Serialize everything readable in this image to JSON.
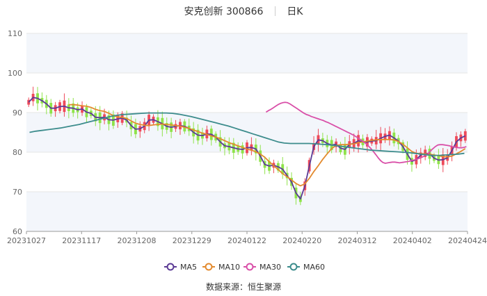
{
  "title": {
    "name": "安克创新",
    "code": "300866",
    "period": "日K"
  },
  "source": "数据来源：恒生聚源",
  "colors": {
    "up": "#ee4a5a",
    "down": "#8fe34a",
    "MA5": "#5b3a95",
    "MA10": "#e38a2e",
    "MA30": "#d94fa8",
    "MA60": "#3c8c8c",
    "grid": "#e6e6e6",
    "band": "#f3f6fb"
  },
  "chart_data": {
    "type": "candlestick",
    "ylim": [
      60,
      110
    ],
    "yticks": [
      60,
      70,
      80,
      90,
      100,
      110
    ],
    "xticks": [
      "20231027",
      "20231117",
      "20231208",
      "20231229",
      "20240122",
      "20240220",
      "20240312",
      "20240402",
      "20240424"
    ],
    "legend_position": "bottom",
    "series": [
      {
        "name": "MA5",
        "values": [
          92.6,
          93.8,
          93.6,
          93.0,
          92.2,
          91.1,
          91.1,
          91.5,
          91.6,
          91.2,
          91.1,
          90.7,
          90.9,
          90.1,
          89.8,
          88.8,
          88.7,
          88.8,
          88.2,
          88.1,
          88.4,
          88.6,
          88.1,
          86.7,
          85.8,
          85.9,
          86.6,
          88.1,
          88.2,
          87.7,
          87.2,
          86.5,
          86.3,
          86.5,
          86.7,
          86.5,
          86.0,
          85.0,
          84.3,
          84.2,
          84.6,
          84.5,
          83.8,
          82.6,
          81.6,
          81.4,
          81.1,
          80.8,
          80.7,
          81.1,
          81.2,
          80.8,
          79.0,
          76.9,
          76.5,
          76.7,
          76.3,
          75.7,
          74.1,
          72.5,
          69.7,
          68.2,
          71.5,
          76.6,
          81.4,
          83.1,
          82.9,
          82.2,
          81.8,
          82.0,
          81.0,
          80.7,
          82.0,
          82.2,
          82.9,
          82.6,
          82.6,
          82.8,
          82.9,
          83.5,
          84.0,
          84.3,
          83.6,
          82.8,
          81.4,
          79.5,
          77.7,
          78.1,
          79.3,
          79.7,
          79.6,
          78.5,
          78.0,
          78.1,
          78.6,
          80.4,
          82.6,
          83.6,
          84.1
        ]
      },
      {
        "name": "MA10",
        "values": [
          null,
          null,
          null,
          null,
          null,
          null,
          null,
          null,
          null,
          92.0,
          92.0,
          91.9,
          91.7,
          91.6,
          91.3,
          90.8,
          90.5,
          90.3,
          89.8,
          89.2,
          88.9,
          88.8,
          88.5,
          87.9,
          87.3,
          87.0,
          86.8,
          86.7,
          86.9,
          87.0,
          87.1,
          87.0,
          86.9,
          86.7,
          86.6,
          86.3,
          86.0,
          85.6,
          85.2,
          84.8,
          84.5,
          84.1,
          83.8,
          83.4,
          82.9,
          82.4,
          82.0,
          81.6,
          81.2,
          80.8,
          80.5,
          80.1,
          79.5,
          78.7,
          77.6,
          76.6,
          75.6,
          74.6,
          73.8,
          73.0,
          72.1,
          71.5,
          72.0,
          73.4,
          75.1,
          76.6,
          78.2,
          79.6,
          80.9,
          81.7,
          81.9,
          81.9,
          82.0,
          82.1,
          82.4,
          82.6,
          82.8,
          83.0,
          83.1,
          83.2,
          83.2,
          83.2,
          83.1,
          82.7,
          82.0,
          81.1,
          80.2,
          79.7,
          79.6,
          79.6,
          79.5,
          79.3,
          79.1,
          78.9,
          78.8,
          79.0,
          79.6,
          80.2,
          80.9
        ]
      },
      {
        "name": "MA30",
        "values": [
          null,
          null,
          null,
          null,
          null,
          null,
          null,
          null,
          null,
          null,
          null,
          null,
          null,
          null,
          null,
          null,
          null,
          null,
          null,
          null,
          null,
          null,
          null,
          null,
          null,
          null,
          null,
          null,
          null,
          null,
          null,
          null,
          null,
          null,
          null,
          null,
          null,
          null,
          null,
          null,
          null,
          null,
          null,
          null,
          null,
          null,
          null,
          null,
          null,
          null,
          null,
          null,
          null,
          null,
          null,
          null,
          null,
          null,
          null,
          null,
          null,
          null,
          null,
          null,
          null,
          null,
          null,
          null,
          null,
          null,
          null,
          null,
          null,
          null,
          null,
          null,
          null,
          null,
          null,
          null,
          null,
          null,
          null,
          null,
          null,
          null,
          null,
          null,
          null,
          null,
          null,
          null,
          null,
          null,
          null,
          null,
          null,
          null,
          null,
          null,
          90.1,
          90.5,
          90.8,
          91.2,
          91.6,
          92.0,
          92.3,
          92.5,
          92.6,
          92.5,
          92.2,
          91.8,
          91.4,
          91.0,
          90.6,
          90.2,
          89.8,
          89.5,
          89.3,
          89.0,
          88.8,
          88.6,
          88.4,
          88.2,
          88.0,
          87.7,
          87.5,
          87.2,
          86.9,
          86.6,
          86.3,
          86.0,
          85.7,
          85.4,
          85.1,
          84.8,
          84.5,
          84.2,
          83.8,
          83.4,
          83.0,
          82.6,
          82.1,
          81.5,
          80.9,
          80.2,
          79.4,
          78.6,
          77.9,
          77.4,
          77.2,
          77.3,
          77.4,
          77.5,
          77.5,
          77.4,
          77.3,
          77.4,
          77.5,
          77.6,
          77.7,
          77.9,
          78.0,
          78.2,
          78.4,
          78.6,
          78.9,
          79.2,
          79.7,
          80.3,
          80.9,
          81.4,
          81.8,
          81.9,
          81.9,
          81.8,
          81.7,
          81.6,
          81.4,
          81.3,
          81.2,
          81.1,
          81.1,
          81.2,
          81.4
        ]
      },
      {
        "name": "MA60",
        "values": [
          85.0,
          85.3,
          85.5,
          85.7,
          85.9,
          86.1,
          86.4,
          86.7,
          87.0,
          87.4,
          87.8,
          88.2,
          88.6,
          89.0,
          89.3,
          89.5,
          89.6,
          89.7,
          89.8,
          89.9,
          89.9,
          89.9,
          89.9,
          89.8,
          89.6,
          89.3,
          89.0,
          88.6,
          88.2,
          87.8,
          87.4,
          87.0,
          86.6,
          86.1,
          85.6,
          85.1,
          84.6,
          84.1,
          83.6,
          83.1,
          82.6,
          82.3,
          82.2,
          82.2,
          82.2,
          82.2,
          82.1,
          82.0,
          81.9,
          81.7,
          81.5,
          81.3,
          81.1,
          80.9,
          80.7,
          80.5,
          80.4,
          80.3,
          80.2,
          80.1,
          80.0,
          79.9,
          79.7,
          79.5,
          79.3,
          79.2,
          79.2,
          79.3,
          79.4,
          79.5,
          79.7
        ]
      }
    ]
  }
}
